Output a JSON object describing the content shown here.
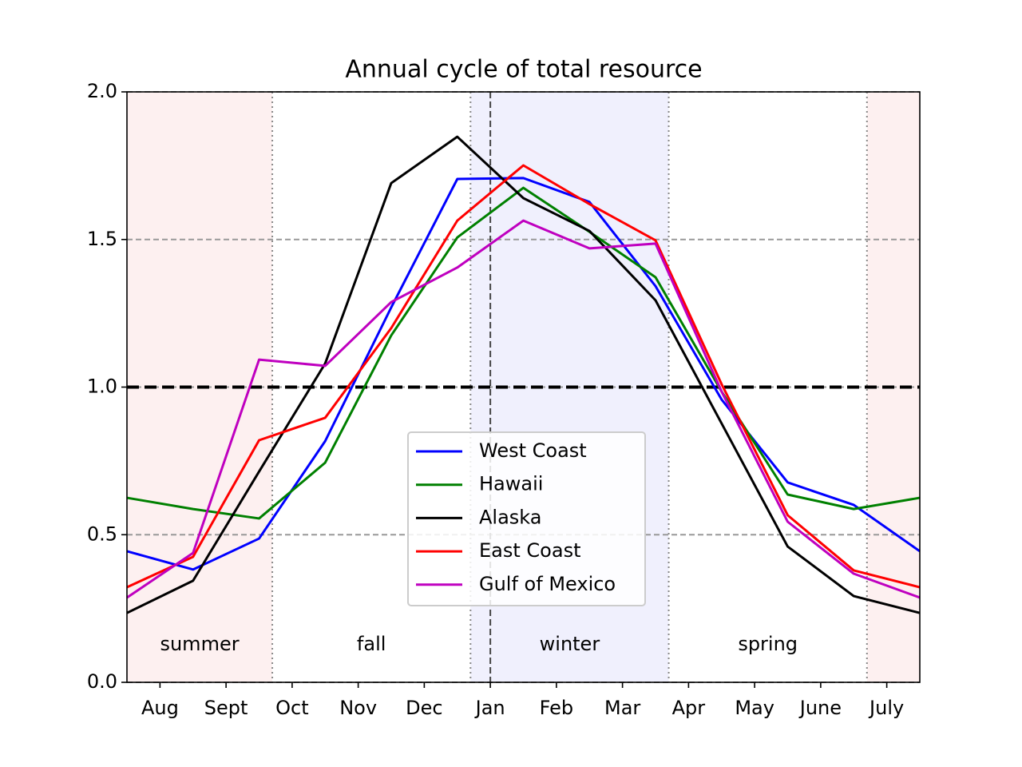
{
  "chart_data": {
    "type": "line",
    "title": "Annual cycle of total resource",
    "x": [
      -0.5,
      0.5,
      1.5,
      2.5,
      3.5,
      4.5,
      5.5,
      6.5,
      7.5,
      8.5,
      9.5,
      10.5,
      11.5
    ],
    "xlim": [
      -0.5,
      11.5
    ],
    "xticks": [
      {
        "value": 0,
        "label": "Aug"
      },
      {
        "value": 1,
        "label": "Sept"
      },
      {
        "value": 2,
        "label": "Oct"
      },
      {
        "value": 3,
        "label": "Nov"
      },
      {
        "value": 4,
        "label": "Dec"
      },
      {
        "value": 5,
        "label": "Jan"
      },
      {
        "value": 6,
        "label": "Feb"
      },
      {
        "value": 7,
        "label": "Mar"
      },
      {
        "value": 8,
        "label": "Apr"
      },
      {
        "value": 9,
        "label": "May"
      },
      {
        "value": 10,
        "label": "June"
      },
      {
        "value": 11,
        "label": "July"
      }
    ],
    "ylim": [
      0,
      2
    ],
    "yticks": [
      {
        "value": 0,
        "label": "0.0"
      },
      0.5,
      {
        "value": 1,
        "label": "1.0"
      },
      1.5,
      {
        "value": 2,
        "label": "2.0"
      }
    ],
    "grid": true,
    "reference_line": 1,
    "year_start_line": 5,
    "season_boundaries": [
      1.7,
      4.7,
      7.7,
      10.7
    ],
    "seasons": [
      {
        "name": "summer",
        "color": "#fdf0f0"
      },
      {
        "name": "fall",
        "color": "#ffffff"
      },
      {
        "name": "winter",
        "color": "#f0f0fd"
      },
      {
        "name": "spring",
        "color": "#ffffff"
      }
    ],
    "legend": "lower center",
    "series": [
      {
        "name": "West Coast",
        "color": "#0000ff",
        "values": [
          0.444,
          0.382,
          0.487,
          0.817,
          1.27,
          1.705,
          1.708,
          1.627,
          1.342,
          0.958,
          0.677,
          0.601,
          0.444
        ]
      },
      {
        "name": "Hawaii",
        "color": "#008000",
        "values": [
          0.625,
          0.587,
          0.555,
          0.744,
          1.175,
          1.507,
          1.675,
          1.526,
          1.372,
          0.985,
          0.636,
          0.587,
          0.625
        ]
      },
      {
        "name": "Alaska",
        "color": "#000000",
        "values": [
          0.235,
          0.344,
          0.714,
          1.08,
          1.691,
          1.848,
          1.64,
          1.529,
          1.294,
          0.877,
          0.46,
          0.292,
          0.235
        ]
      },
      {
        "name": "East Coast",
        "color": "#ff0000",
        "values": [
          0.322,
          0.425,
          0.82,
          0.896,
          1.2,
          1.564,
          1.751,
          1.62,
          1.497,
          1.01,
          0.566,
          0.379,
          0.322
        ]
      },
      {
        "name": "Gulf of Mexico",
        "color": "#bf00bf",
        "values": [
          0.287,
          0.438,
          1.093,
          1.072,
          1.288,
          1.405,
          1.564,
          1.47,
          1.486,
          0.985,
          0.544,
          0.368,
          0.287
        ]
      }
    ]
  }
}
